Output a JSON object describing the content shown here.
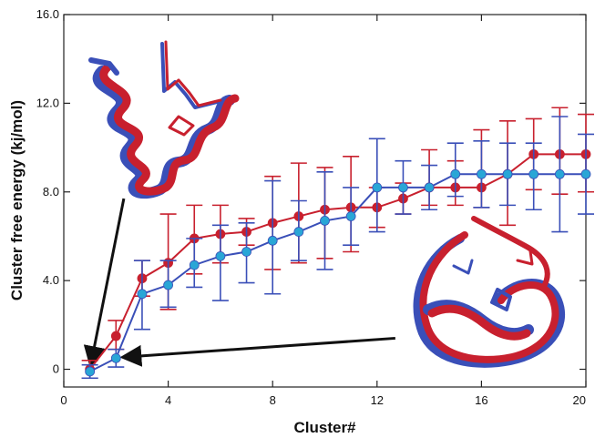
{
  "chart_data": {
    "type": "scatter",
    "title": "",
    "xlabel": "Cluster#",
    "ylabel": "Cluster free energy  (kj/mol)",
    "xlim": [
      0,
      20
    ],
    "ylim": [
      -0.8,
      16
    ],
    "x_ticks": [
      0,
      4,
      8,
      12,
      16,
      20
    ],
    "x_tick_labels": [
      "0",
      "4",
      "8",
      "12",
      "16",
      "20"
    ],
    "y_ticks": [
      0,
      4,
      8,
      12,
      16
    ],
    "y_tick_labels": [
      "0",
      "4.0",
      "8.0",
      "12.0",
      "16.0"
    ],
    "grid": false,
    "legend": "none",
    "series": [
      {
        "color": "#c8202e",
        "marker_color": "#c8202e",
        "x": [
          1,
          2,
          3,
          4,
          5,
          6,
          7,
          8,
          9,
          10,
          11,
          12,
          13,
          14,
          15,
          16,
          17,
          18,
          19,
          20
        ],
        "y": [
          0.0,
          1.5,
          4.1,
          4.8,
          5.9,
          6.1,
          6.2,
          6.6,
          6.9,
          7.2,
          7.3,
          7.3,
          7.7,
          8.2,
          8.2,
          8.2,
          8.8,
          9.7,
          9.7,
          9.7
        ],
        "err_low": [
          0.4,
          0.6,
          0.8,
          2.1,
          1.6,
          1.3,
          0.6,
          2.1,
          2.1,
          2.2,
          2.0,
          0.9,
          0.7,
          0.8,
          0.8,
          0.9,
          2.3,
          1.6,
          1.8,
          1.7
        ],
        "err_high": [
          0.4,
          0.7,
          0.8,
          2.2,
          1.5,
          1.3,
          0.6,
          2.1,
          2.4,
          1.9,
          2.3,
          0.9,
          0.7,
          1.7,
          1.2,
          2.6,
          2.4,
          1.6,
          2.1,
          1.8
        ]
      },
      {
        "color": "#3a4fb8",
        "marker_color": "#29a6d6",
        "x": [
          1,
          2,
          3,
          4,
          5,
          6,
          7,
          8,
          9,
          10,
          11,
          12,
          13,
          14,
          15,
          16,
          17,
          18,
          19,
          20
        ],
        "y": [
          -0.1,
          0.5,
          3.4,
          3.8,
          4.7,
          5.1,
          5.3,
          5.8,
          6.2,
          6.7,
          6.9,
          8.2,
          8.2,
          8.2,
          8.8,
          8.8,
          8.8,
          8.8,
          8.8,
          8.8
        ],
        "err_low": [
          0.3,
          0.4,
          1.6,
          1.0,
          1.0,
          2.0,
          1.4,
          2.4,
          1.3,
          2.2,
          1.3,
          2.0,
          1.2,
          1.0,
          1.0,
          1.5,
          1.4,
          1.6,
          2.6,
          1.8
        ],
        "err_high": [
          0.3,
          0.4,
          1.5,
          1.1,
          1.2,
          1.4,
          1.3,
          2.7,
          1.4,
          2.2,
          1.3,
          2.2,
          1.2,
          1.0,
          1.4,
          1.5,
          1.4,
          1.4,
          2.6,
          1.8
        ]
      }
    ],
    "annotations": [
      {
        "type": "arrow",
        "from": [
          2.3,
          7.7
        ],
        "to": [
          1.05,
          0.3
        ]
      },
      {
        "type": "arrow",
        "from": [
          12.7,
          1.4
        ],
        "to": [
          2.35,
          0.55
        ]
      },
      {
        "type": "image",
        "description": "red and blue protein ribbon overlay, upper left",
        "color_a": "#c8202e",
        "color_b": "#3a4fb8"
      },
      {
        "type": "image",
        "description": "red and blue protein ribbon overlay, lower right",
        "color_a": "#c8202e",
        "color_b": "#3a4fb8"
      }
    ]
  }
}
